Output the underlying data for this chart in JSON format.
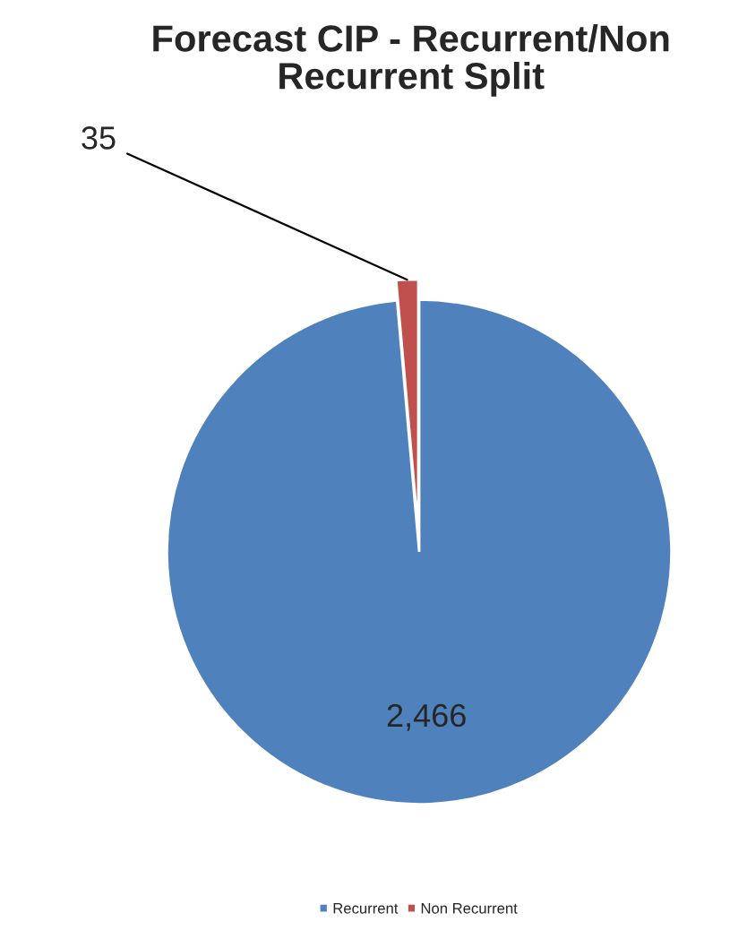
{
  "chart_data": {
    "type": "pie",
    "title": "Forecast CIP - Recurrent/Non Recurrent Split",
    "categories": [
      "Recurrent",
      "Non Recurrent"
    ],
    "values": [
      2466,
      35
    ],
    "colors": [
      "#4f81bd",
      "#c0504d"
    ],
    "value_labels": [
      "2,466",
      "35"
    ],
    "legend": "bottom"
  }
}
